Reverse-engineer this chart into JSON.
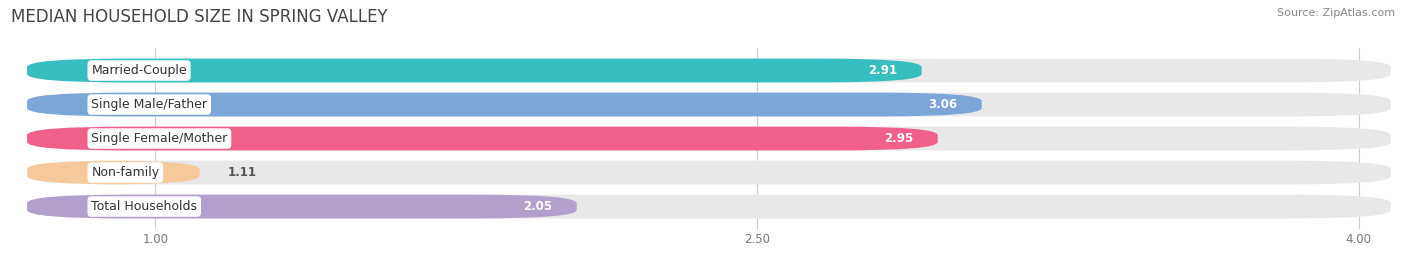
{
  "title": "MEDIAN HOUSEHOLD SIZE IN SPRING VALLEY",
  "source": "Source: ZipAtlas.com",
  "categories": [
    "Married-Couple",
    "Single Male/Father",
    "Single Female/Mother",
    "Non-family",
    "Total Households"
  ],
  "values": [
    2.91,
    3.06,
    2.95,
    1.11,
    2.05
  ],
  "bar_colors": [
    "#35bfc0",
    "#7ca5d8",
    "#f0608a",
    "#f5c99a",
    "#b39fcc"
  ],
  "xlim_min": 0.68,
  "xlim_max": 4.08,
  "xticks": [
    1.0,
    2.5,
    4.0
  ],
  "background_color": "#ffffff",
  "bar_bg_color": "#e8e8e8",
  "title_fontsize": 12,
  "source_fontsize": 8,
  "label_fontsize": 9,
  "value_fontsize": 8.5,
  "bar_height": 0.7
}
